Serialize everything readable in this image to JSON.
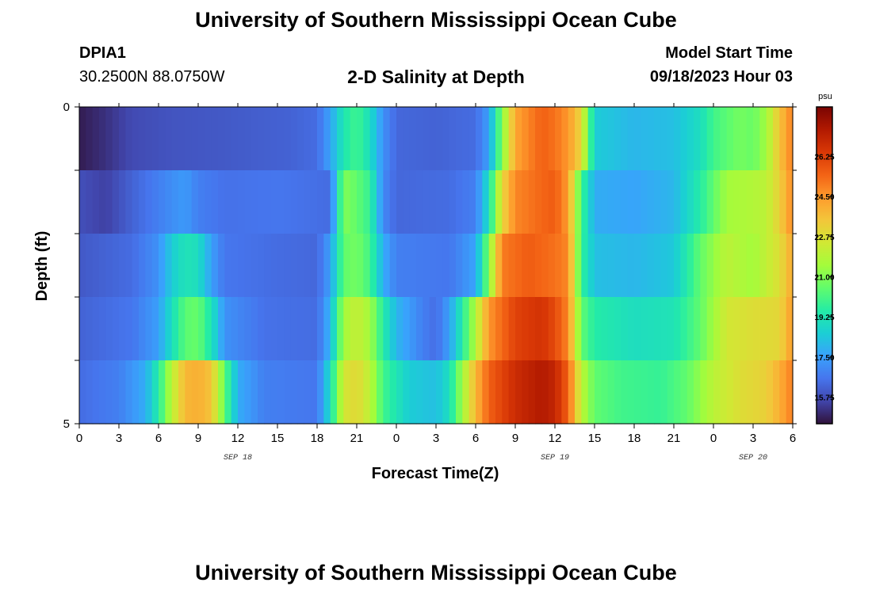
{
  "header": {
    "title": "University of Southern Mississippi Ocean Cube",
    "station": "DPIA1",
    "coords": "30.2500N  88.0750W",
    "subtitle": "2-D Salinity at Depth",
    "start_label": "Model Start Time",
    "start_value": "09/18/2023 Hour 03"
  },
  "footer": {
    "title": "University of Southern Mississippi Ocean Cube"
  },
  "chart_data": {
    "type": "heatmap",
    "title": "2-D Salinity at Depth",
    "xlabel": "Forecast Time(Z)",
    "ylabel": "Depth (ft)",
    "x_hours_range": [
      0,
      54
    ],
    "x_tick_labels": [
      "0",
      "3",
      "6",
      "9",
      "12",
      "15",
      "18",
      "21",
      "0",
      "3",
      "6",
      "9",
      "12",
      "15",
      "18",
      "21",
      "0",
      "3",
      "6"
    ],
    "date_labels": [
      {
        "text": "SEP 18",
        "hour": 12
      },
      {
        "text": "SEP 19",
        "hour": 36
      },
      {
        "text": "SEP 20",
        "hour": 51
      }
    ],
    "y_tick_labels": [
      "0",
      "5"
    ],
    "y_range": [
      0,
      5
    ],
    "layers": 5,
    "colorbar": {
      "unit": "psu",
      "min": 14.6,
      "max": 28.4,
      "ticks": [
        "15.75",
        "17.50",
        "19.25",
        "21.00",
        "22.75",
        "24.50",
        "26.25"
      ],
      "colors": [
        "#30123b",
        "#4145ab",
        "#4675ed",
        "#39a2fc",
        "#1bcfd4",
        "#24eca6",
        "#61fc6c",
        "#a4fc3b",
        "#d1e834",
        "#f3c63a",
        "#fe9b2d",
        "#f36315",
        "#d93806",
        "#b11901",
        "#7a0402"
      ]
    },
    "salinity_knots": [
      {
        "name": "layer-0",
        "points": [
          [
            0,
            14.8
          ],
          [
            2,
            15.2
          ],
          [
            4,
            15.7
          ],
          [
            7,
            15.9
          ],
          [
            11,
            16.0
          ],
          [
            16,
            16.2
          ],
          [
            18,
            16.4
          ],
          [
            19,
            17.6
          ],
          [
            20,
            19.3
          ],
          [
            21,
            20.0
          ],
          [
            22,
            19.0
          ],
          [
            23,
            17.2
          ],
          [
            24,
            16.3
          ],
          [
            27,
            16.2
          ],
          [
            30,
            16.4
          ],
          [
            31,
            17.5
          ],
          [
            32,
            21.0
          ],
          [
            33,
            24.2
          ],
          [
            35,
            25.5
          ],
          [
            36,
            25.2
          ],
          [
            37,
            24.5
          ],
          [
            38,
            23.0
          ],
          [
            39,
            18.5
          ],
          [
            42,
            18.0
          ],
          [
            45,
            18.2
          ],
          [
            47,
            19.0
          ],
          [
            48,
            20.0
          ],
          [
            50,
            20.8
          ],
          [
            51,
            20.6
          ],
          [
            52,
            21.5
          ],
          [
            53,
            23.5
          ],
          [
            54,
            25.0
          ]
        ]
      },
      {
        "name": "layer-1",
        "points": [
          [
            0,
            15.8
          ],
          [
            2,
            15.5
          ],
          [
            4,
            16.2
          ],
          [
            6,
            16.8
          ],
          [
            8,
            17.4
          ],
          [
            9,
            16.8
          ],
          [
            11,
            16.5
          ],
          [
            15,
            16.6
          ],
          [
            19,
            16.4
          ],
          [
            20,
            21.0
          ],
          [
            21,
            20.5
          ],
          [
            22,
            19.8
          ],
          [
            23,
            17.0
          ],
          [
            24,
            16.3
          ],
          [
            28,
            16.4
          ],
          [
            30,
            16.8
          ],
          [
            31,
            19.0
          ],
          [
            32,
            23.0
          ],
          [
            33,
            24.8
          ],
          [
            35,
            25.4
          ],
          [
            36,
            25.6
          ],
          [
            37,
            24.4
          ],
          [
            38,
            20.0
          ],
          [
            39,
            17.8
          ],
          [
            42,
            17.6
          ],
          [
            45,
            18.0
          ],
          [
            47,
            19.5
          ],
          [
            49,
            21.5
          ],
          [
            51,
            21.8
          ],
          [
            52,
            22.0
          ],
          [
            53,
            23.2
          ],
          [
            54,
            24.8
          ]
        ]
      },
      {
        "name": "layer-2",
        "points": [
          [
            0,
            16.0
          ],
          [
            4,
            16.4
          ],
          [
            6,
            17.2
          ],
          [
            7,
            18.5
          ],
          [
            8,
            19.2
          ],
          [
            9,
            19.0
          ],
          [
            10,
            17.5
          ],
          [
            11,
            16.6
          ],
          [
            15,
            16.4
          ],
          [
            18,
            16.3
          ],
          [
            19,
            17.5
          ],
          [
            20,
            20.5
          ],
          [
            21,
            20.8
          ],
          [
            22,
            20.0
          ],
          [
            23,
            17.8
          ],
          [
            24,
            16.8
          ],
          [
            28,
            16.6
          ],
          [
            30,
            17.6
          ],
          [
            31,
            21.0
          ],
          [
            32,
            25.0
          ],
          [
            34,
            25.6
          ],
          [
            36,
            25.2
          ],
          [
            37,
            24.8
          ],
          [
            38,
            19.8
          ],
          [
            39,
            18.2
          ],
          [
            42,
            18.0
          ],
          [
            45,
            18.4
          ],
          [
            47,
            20.5
          ],
          [
            49,
            22.0
          ],
          [
            51,
            21.5
          ],
          [
            53,
            22.8
          ],
          [
            54,
            24.2
          ]
        ]
      },
      {
        "name": "layer-3",
        "points": [
          [
            0,
            16.2
          ],
          [
            4,
            16.6
          ],
          [
            6,
            17.5
          ],
          [
            7,
            19.0
          ],
          [
            8,
            20.4
          ],
          [
            9,
            20.6
          ],
          [
            10,
            19.2
          ],
          [
            11,
            17.2
          ],
          [
            14,
            16.5
          ],
          [
            18,
            16.4
          ],
          [
            19,
            18.0
          ],
          [
            20,
            21.5
          ],
          [
            21,
            22.2
          ],
          [
            22,
            21.5
          ],
          [
            23,
            19.5
          ],
          [
            24,
            18.0
          ],
          [
            26,
            16.8
          ],
          [
            27,
            16.4
          ],
          [
            28,
            17.5
          ],
          [
            29,
            19.5
          ],
          [
            30,
            21.8
          ],
          [
            31,
            24.5
          ],
          [
            33,
            26.2
          ],
          [
            35,
            26.6
          ],
          [
            36,
            26.0
          ],
          [
            37,
            24.8
          ],
          [
            38,
            20.5
          ],
          [
            39,
            19.5
          ],
          [
            42,
            19.0
          ],
          [
            45,
            19.2
          ],
          [
            47,
            20.5
          ],
          [
            49,
            22.5
          ],
          [
            51,
            22.8
          ],
          [
            53,
            23.0
          ],
          [
            54,
            24.5
          ]
        ]
      },
      {
        "name": "layer-4",
        "points": [
          [
            0,
            16.4
          ],
          [
            3,
            16.8
          ],
          [
            5,
            17.8
          ],
          [
            6,
            19.5
          ],
          [
            7,
            22.0
          ],
          [
            8,
            23.8
          ],
          [
            9,
            24.0
          ],
          [
            10,
            23.5
          ],
          [
            11,
            20.5
          ],
          [
            12,
            17.8
          ],
          [
            14,
            16.8
          ],
          [
            18,
            16.6
          ],
          [
            19,
            19.0
          ],
          [
            20,
            22.5
          ],
          [
            21,
            23.0
          ],
          [
            22,
            22.0
          ],
          [
            23,
            20.0
          ],
          [
            25,
            18.5
          ],
          [
            27,
            18.2
          ],
          [
            28,
            19.0
          ],
          [
            29,
            21.5
          ],
          [
            30,
            23.8
          ],
          [
            31,
            25.5
          ],
          [
            33,
            26.8
          ],
          [
            35,
            27.4
          ],
          [
            36,
            27.0
          ],
          [
            37,
            25.5
          ],
          [
            38,
            22.0
          ],
          [
            39,
            20.5
          ],
          [
            41,
            20.0
          ],
          [
            44,
            19.8
          ],
          [
            46,
            20.5
          ],
          [
            48,
            22.0
          ],
          [
            50,
            22.8
          ],
          [
            52,
            23.2
          ],
          [
            53,
            24.0
          ],
          [
            54,
            25.0
          ]
        ]
      }
    ]
  }
}
